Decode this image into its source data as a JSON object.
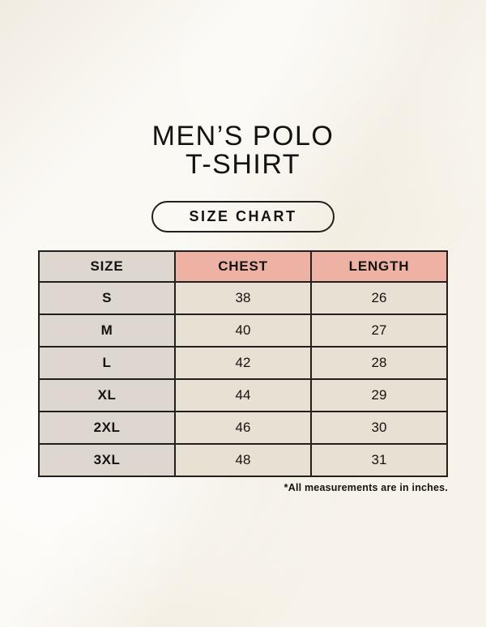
{
  "page": {
    "title_line1": "MEN’S POLO",
    "title_line2": "T-SHIRT",
    "badge_label": "SIZE CHART",
    "footnote": "*All measurements are in inches."
  },
  "table": {
    "headers": {
      "size": "SIZE",
      "chest": "CHEST",
      "length": "LENGTH"
    },
    "rows": [
      {
        "size": "S",
        "chest": "38",
        "length": "26"
      },
      {
        "size": "M",
        "chest": "40",
        "length": "27"
      },
      {
        "size": "L",
        "chest": "42",
        "length": "28"
      },
      {
        "size": "XL",
        "chest": "44",
        "length": "29"
      },
      {
        "size": "2XL",
        "chest": "46",
        "length": "30"
      },
      {
        "size": "3XL",
        "chest": "48",
        "length": "31"
      }
    ]
  },
  "colors": {
    "background": "#f7f3ea",
    "cell_size_bg": "#ded7d0",
    "header_measure_bg": "#edb2a3",
    "cell_measure_bg": "#e8e1d3",
    "border": "#231f1c",
    "text": "#151311"
  },
  "chart_data": {
    "type": "table",
    "title": "MEN’S POLO T-SHIRT — SIZE CHART",
    "columns": [
      "SIZE",
      "CHEST",
      "LENGTH"
    ],
    "rows": [
      [
        "S",
        38,
        26
      ],
      [
        "M",
        40,
        27
      ],
      [
        "L",
        42,
        28
      ],
      [
        "XL",
        44,
        29
      ],
      [
        "2XL",
        46,
        30
      ],
      [
        "3XL",
        48,
        31
      ]
    ],
    "units": "inches",
    "note": "*All measurements are in inches."
  }
}
